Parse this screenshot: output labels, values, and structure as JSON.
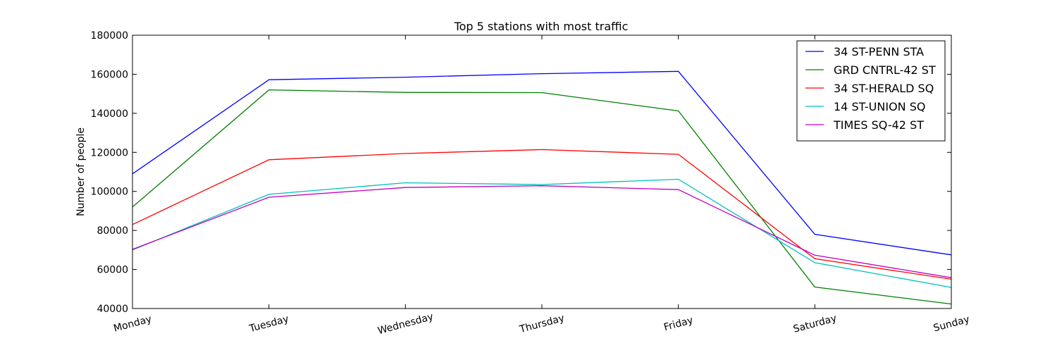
{
  "chart_data": {
    "type": "line",
    "title": "Top 5 stations with most traffic",
    "xlabel": "",
    "ylabel": "Number of people",
    "categories": [
      "Monday",
      "Tuesday",
      "Wednesday",
      "Thursday",
      "Friday",
      "Saturday",
      "Sunday"
    ],
    "ylim": [
      40000,
      180000
    ],
    "yticks": [
      40000,
      60000,
      80000,
      100000,
      120000,
      140000,
      160000,
      180000
    ],
    "grid": false,
    "legend_position": "top-right",
    "series": [
      {
        "name": "34 ST-PENN STA",
        "color": "#0000ff",
        "values": [
          109000,
          157200,
          158500,
          160300,
          161500,
          78000,
          67500
        ]
      },
      {
        "name": "GRD CNTRL-42 ST",
        "color": "#008000",
        "values": [
          92000,
          152000,
          150700,
          150600,
          141200,
          51000,
          42300
        ]
      },
      {
        "name": "34 ST-HERALD SQ",
        "color": "#ff0000",
        "values": [
          83000,
          116200,
          119400,
          121400,
          119000,
          65500,
          55000
        ]
      },
      {
        "name": "14 ST-UNION SQ",
        "color": "#00bfbf",
        "values": [
          70000,
          98500,
          104400,
          103500,
          106200,
          63500,
          50800
        ]
      },
      {
        "name": "TIMES SQ-42 ST",
        "color": "#bf00bf",
        "values": [
          70300,
          97000,
          102000,
          102900,
          100900,
          67300,
          55800
        ]
      }
    ]
  }
}
